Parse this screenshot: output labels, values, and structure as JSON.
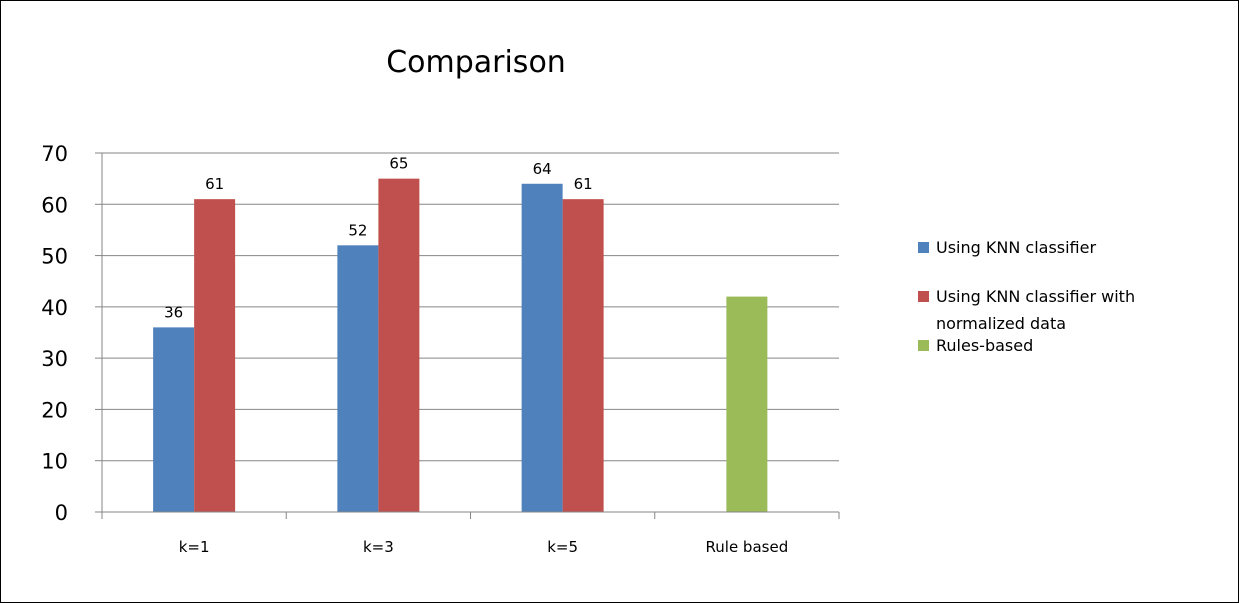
{
  "chart_data": {
    "type": "bar",
    "title": "Comparison",
    "categories": [
      "k=1",
      "k=3",
      "k=5",
      "Rule based"
    ],
    "series": [
      {
        "name": "Using KNN classifier",
        "values": [
          36,
          52,
          64,
          null
        ],
        "color": "#4F81BD"
      },
      {
        "name": "Using KNN classifier with normalized data",
        "legend_lines": [
          "Using KNN classifier with",
          "normalized data"
        ],
        "values": [
          61,
          65,
          61,
          null
        ],
        "color": "#C0504D"
      },
      {
        "name": "Rules-based",
        "values": [
          null,
          null,
          null,
          42
        ],
        "color": "#9BBB59"
      }
    ],
    "data_labels": [
      {
        "series": 0,
        "category": 0,
        "text": "36"
      },
      {
        "series": 1,
        "category": 0,
        "text": "61"
      },
      {
        "series": 0,
        "category": 1,
        "text": "52"
      },
      {
        "series": 1,
        "category": 1,
        "text": "65"
      },
      {
        "series": 0,
        "category": 2,
        "text": "64"
      },
      {
        "series": 1,
        "category": 2,
        "text": "61"
      }
    ],
    "ylim": [
      0,
      70
    ],
    "yticks": [
      "0",
      "10",
      "20",
      "30",
      "40",
      "50",
      "60",
      "70"
    ],
    "grid": true,
    "legend_position": "right",
    "xlabel": "",
    "ylabel": ""
  }
}
